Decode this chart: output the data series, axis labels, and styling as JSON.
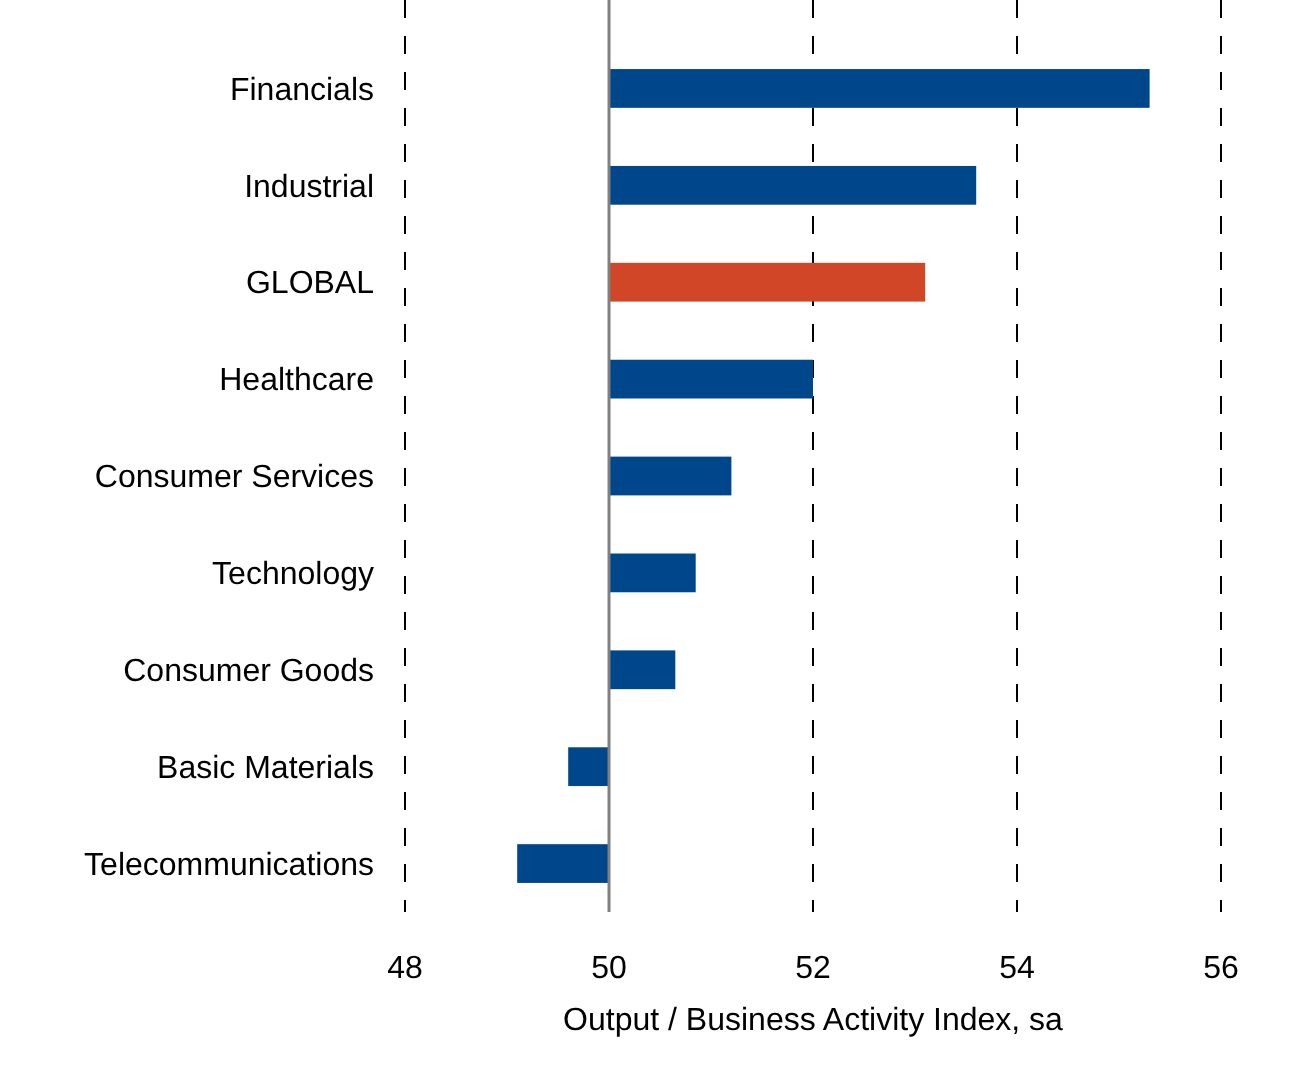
{
  "chart_data": {
    "type": "bar",
    "orientation": "horizontal",
    "xlabel": "Output / Business Activity Index, sa",
    "categories": [
      "Financials",
      "Industrial",
      "GLOBAL",
      "Healthcare",
      "Consumer Services",
      "Technology",
      "Consumer Goods",
      "Basic Materials",
      "Telecommunications"
    ],
    "base": [
      50,
      50,
      50,
      50,
      50,
      50,
      50,
      50,
      50
    ],
    "values": [
      5.3,
      3.6,
      3.1,
      2.0,
      1.2,
      0.85,
      0.65,
      -0.4,
      -0.9
    ],
    "colors": [
      "#00468b",
      "#00468b",
      "#d24628",
      "#00468b",
      "#00468b",
      "#00468b",
      "#00468b",
      "#00468b",
      "#00468b"
    ],
    "xlim": [
      48,
      56
    ],
    "xticks": [
      48,
      50,
      52,
      54,
      56
    ],
    "grid": "x",
    "ref_lines": [
      {
        "axis": "x",
        "value": 50,
        "color": "#808080",
        "line_style": "solid"
      }
    ]
  }
}
